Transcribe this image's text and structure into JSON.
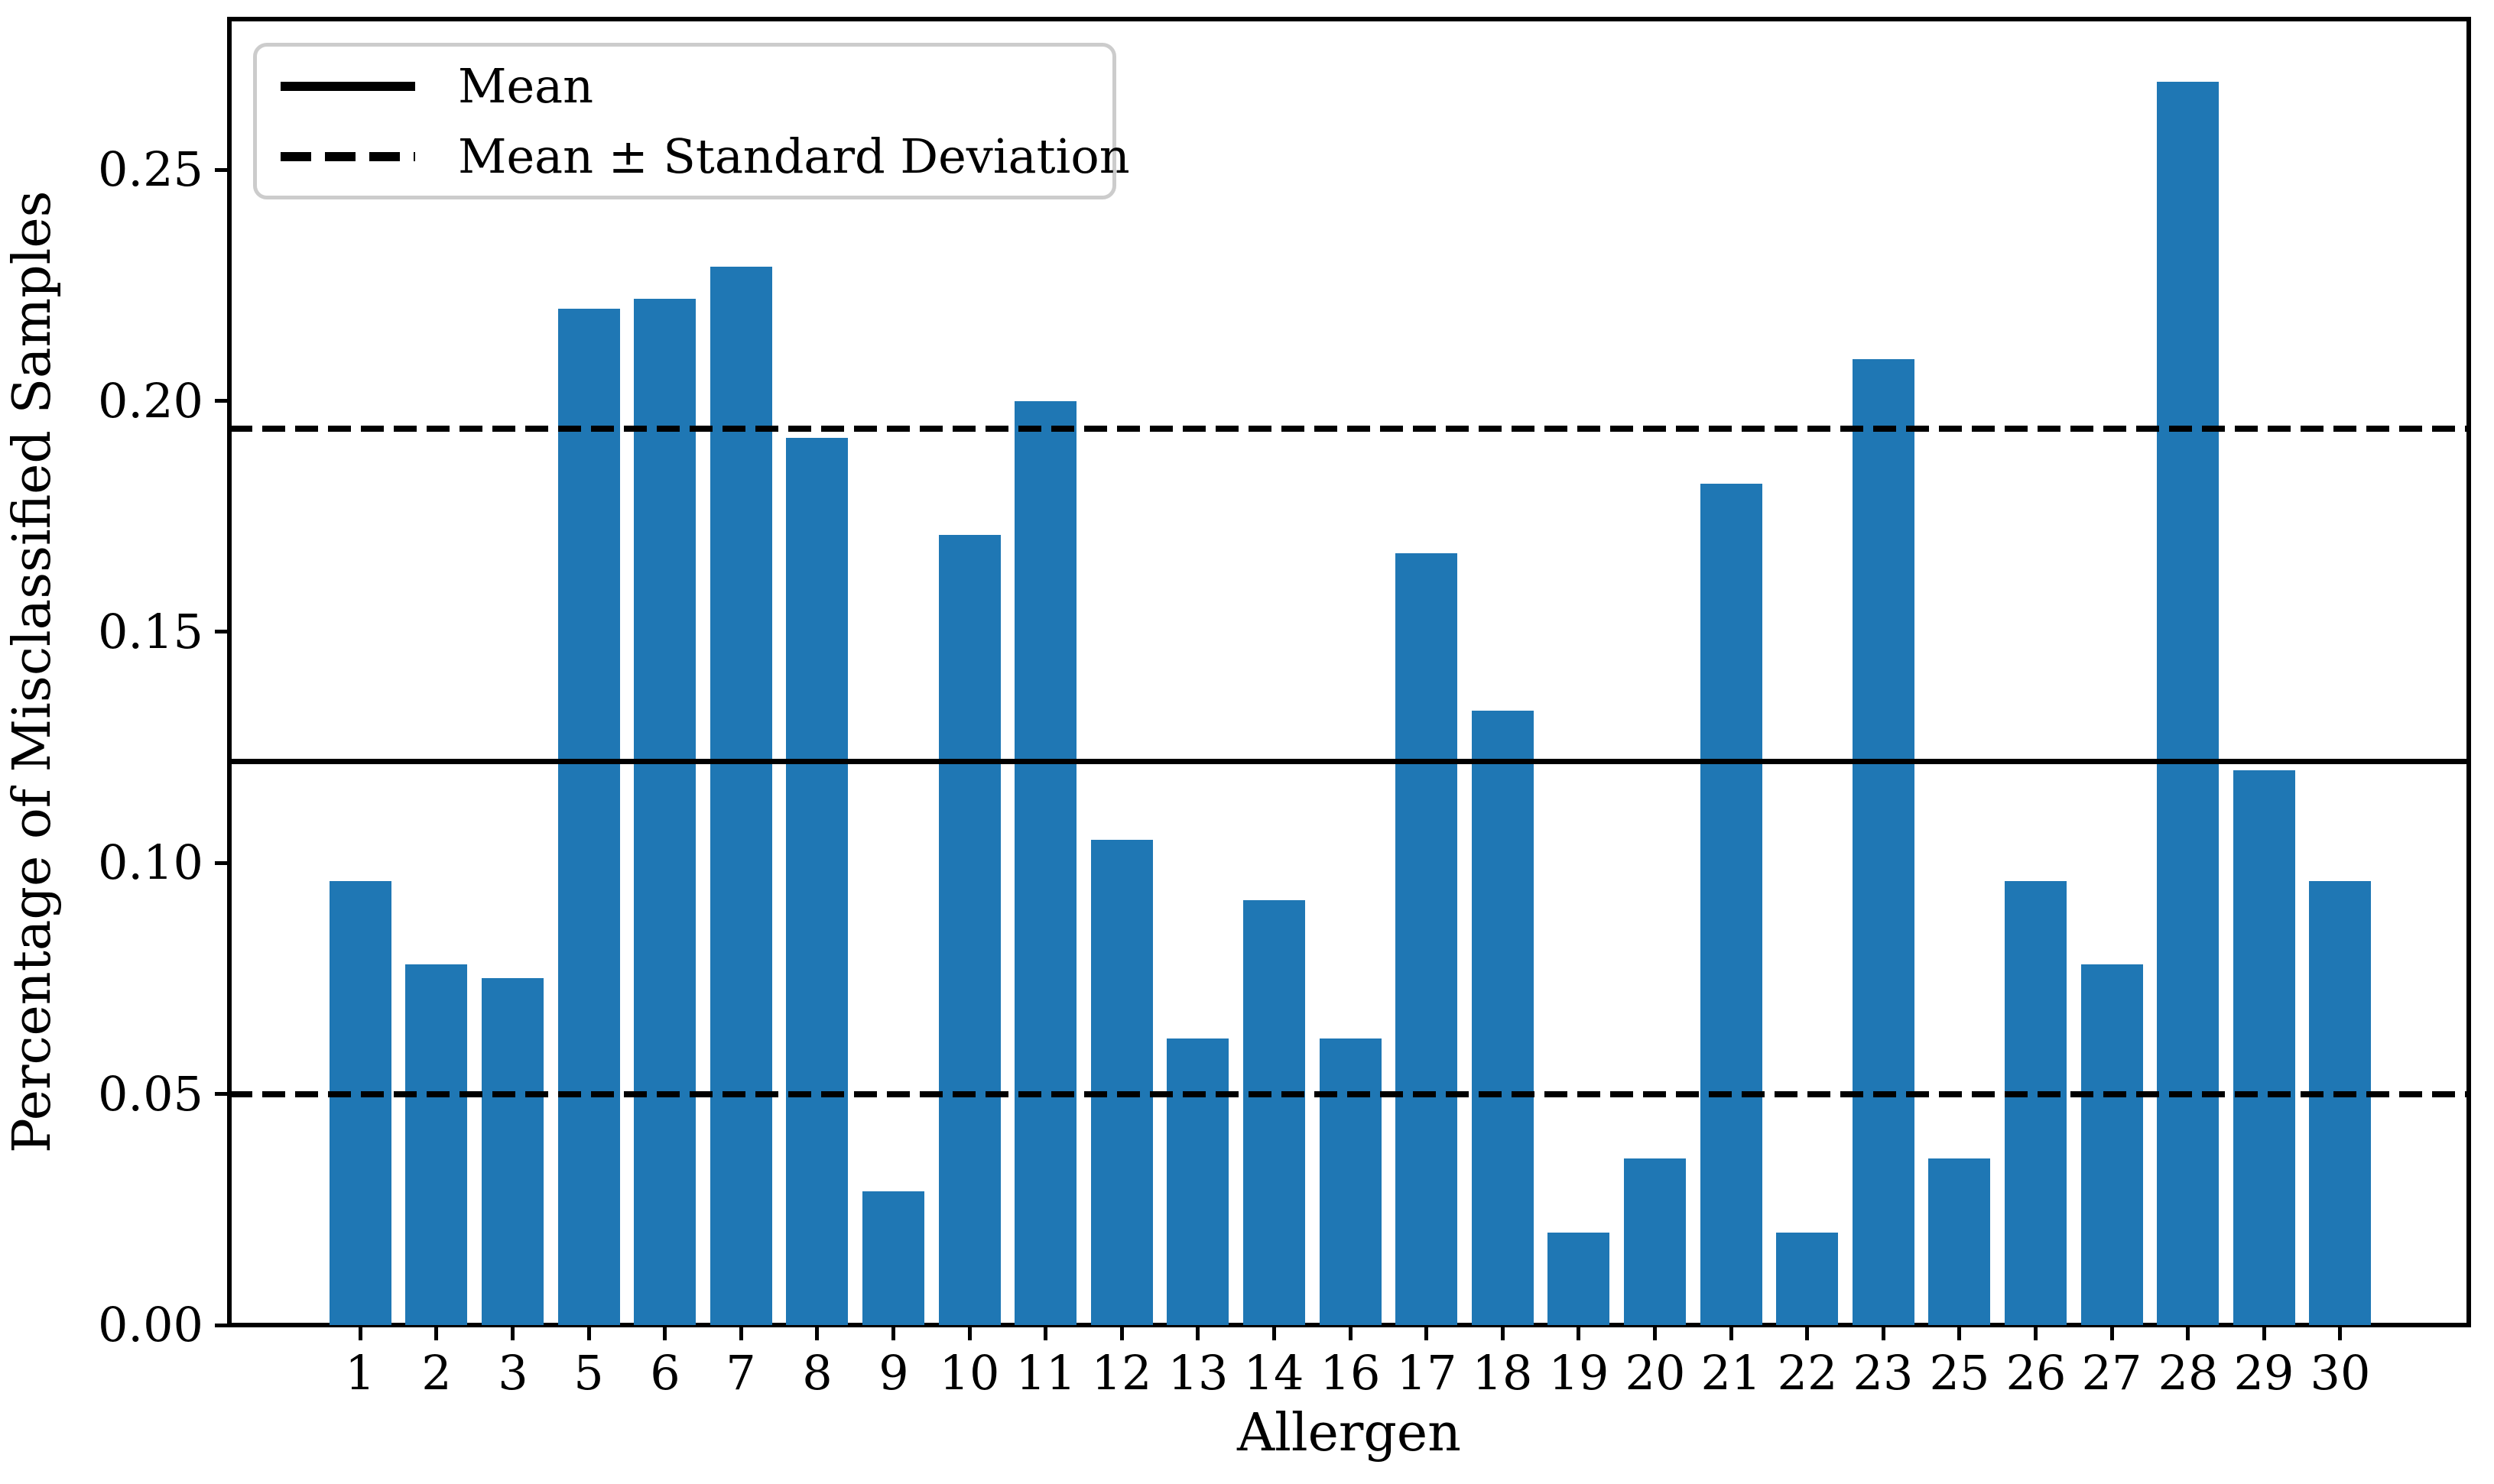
{
  "figure": {
    "background": "#ffffff"
  },
  "chart_data": {
    "type": "bar",
    "title": "",
    "xlabel": "Allergen",
    "ylabel": "Percentage of Misclassified Samples",
    "categories": [
      "1",
      "2",
      "3",
      "5",
      "6",
      "7",
      "8",
      "9",
      "10",
      "11",
      "12",
      "13",
      "14",
      "16",
      "17",
      "18",
      "19",
      "20",
      "21",
      "22",
      "23",
      "25",
      "26",
      "27",
      "28",
      "29",
      "30"
    ],
    "values": [
      0.096,
      0.078,
      0.075,
      0.22,
      0.222,
      0.229,
      0.192,
      0.029,
      0.171,
      0.2,
      0.105,
      0.062,
      0.092,
      0.062,
      0.167,
      0.133,
      0.02,
      0.036,
      0.182,
      0.02,
      0.209,
      0.036,
      0.096,
      0.078,
      0.269,
      0.12,
      0.096
    ],
    "ylim": [
      0,
      0.2826
    ],
    "y_ticks": [
      "0.00",
      "0.05",
      "0.10",
      "0.15",
      "0.20",
      "0.25"
    ],
    "grid": false,
    "legend_position": "upper-left",
    "reference_lines": [
      {
        "name": "mean",
        "style": "solid",
        "value": 0.122
      },
      {
        "name": "mean-plus-std",
        "style": "dashed",
        "value": 0.194
      },
      {
        "name": "mean-minus-std",
        "style": "dashed",
        "value": 0.05
      }
    ],
    "legend": [
      {
        "label": "Mean",
        "style": "solid"
      },
      {
        "label": "Mean ± Standard Deviation",
        "style": "dashed"
      }
    ],
    "colors": {
      "bar": "#1f77b4",
      "line": "#000000",
      "legend_border": "#cccccc"
    }
  }
}
